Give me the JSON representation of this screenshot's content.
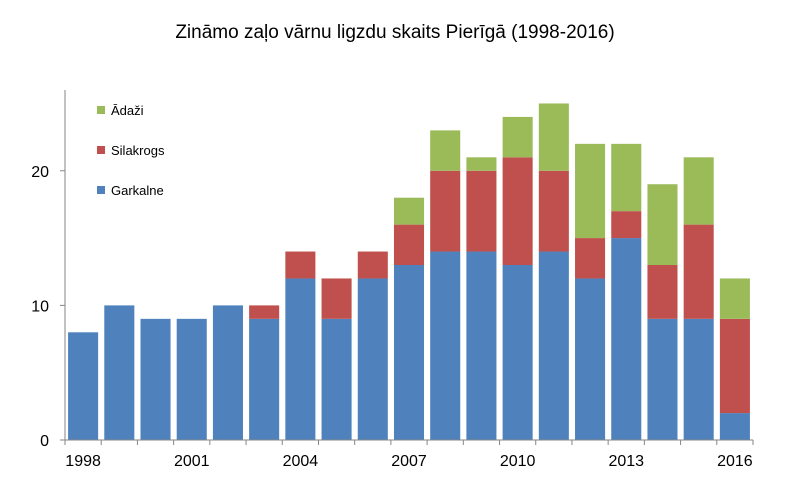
{
  "chart_data": {
    "type": "bar",
    "stacked": true,
    "title": "Zināmo zaļo vārnu ligzdu skaits Pierīgā (1998-2016)",
    "xlabel": "",
    "ylabel": "",
    "ylim": [
      0,
      26
    ],
    "yticks": [
      0,
      10,
      20
    ],
    "grid": false,
    "legend_position": "top-left",
    "categories": [
      "1998",
      "1999",
      "2000",
      "2001",
      "2002",
      "2003",
      "2004",
      "2005",
      "2006",
      "2007",
      "2008",
      "2009",
      "2010",
      "2011",
      "2012",
      "2013",
      "2014",
      "2015",
      "2016"
    ],
    "xtick_labels": [
      "1998",
      "2001",
      "2004",
      "2007",
      "2010",
      "2013",
      "2016"
    ],
    "series": [
      {
        "name": "Garkalne",
        "color": "#4f81bd",
        "values": [
          8,
          10,
          9,
          9,
          10,
          9,
          12,
          9,
          12,
          13,
          14,
          14,
          13,
          14,
          12,
          15,
          9,
          9,
          2
        ]
      },
      {
        "name": "Silakrogs",
        "color": "#c0504d",
        "values": [
          0,
          0,
          0,
          0,
          0,
          1,
          2,
          3,
          2,
          3,
          6,
          6,
          8,
          6,
          3,
          2,
          4,
          7,
          7
        ]
      },
      {
        "name": "Ādaži",
        "color": "#9bbb59",
        "values": [
          0,
          0,
          0,
          0,
          0,
          0,
          0,
          0,
          0,
          2,
          3,
          1,
          3,
          5,
          7,
          5,
          6,
          5,
          3
        ]
      }
    ]
  }
}
